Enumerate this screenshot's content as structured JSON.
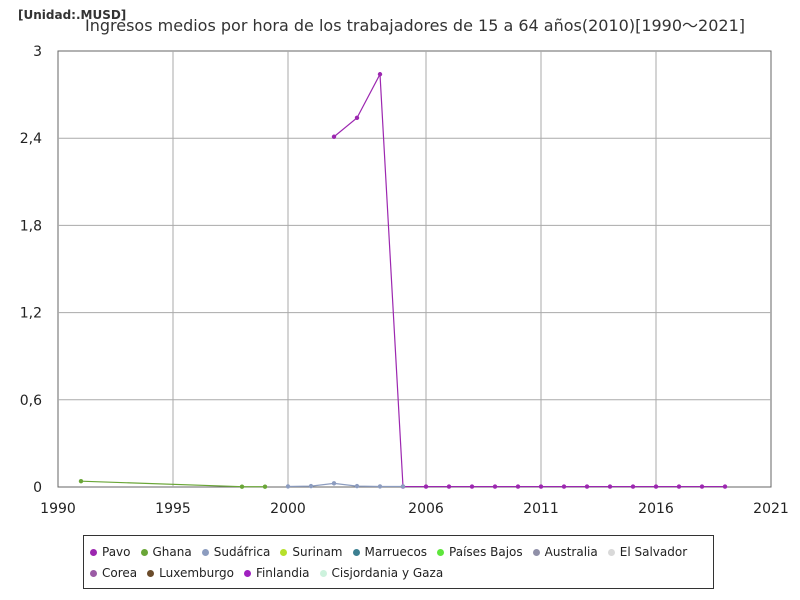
{
  "unit_label": "[Unidad:.MUSD]",
  "chart_data": {
    "type": "line",
    "title": "Ingresos medios por hora de los trabajadores de 15 a 64 años(2010)[1990～2021]",
    "xlabel": "",
    "ylabel": "",
    "xlim": [
      1990,
      2021
    ],
    "ylim": [
      0,
      3
    ],
    "x_ticks": [
      "1990",
      "1995",
      "2000",
      "2006",
      "2011",
      "2016",
      "2021"
    ],
    "y_ticks": [
      "0",
      "0,6",
      "1,2",
      "1,8",
      "2,4",
      "3"
    ],
    "grid": true,
    "legend_position": "bottom",
    "series": [
      {
        "name": "Pavo",
        "color": "#9c27b0",
        "x": [
          2002,
          2003,
          2004,
          2005,
          2006,
          2007,
          2008,
          2009,
          2010,
          2011,
          2012,
          2013,
          2014,
          2015,
          2016,
          2017,
          2018,
          2019
        ],
        "y": [
          2.41,
          2.54,
          2.84,
          0.003,
          0.003,
          0.003,
          0.003,
          0.003,
          0.003,
          0.003,
          0.003,
          0.003,
          0.003,
          0.003,
          0.003,
          0.003,
          0.003,
          0.003
        ]
      },
      {
        "name": "Ghana",
        "color": "#6aa637",
        "x": [
          1991,
          1998,
          1999
        ],
        "y": [
          0.04,
          0.002,
          0.002
        ]
      },
      {
        "name": "Sudáfrica",
        "color": "#8c9cbf",
        "x": [
          2000,
          2001,
          2002,
          2003,
          2004,
          2005
        ],
        "y": [
          0.004,
          0.006,
          0.025,
          0.006,
          0.004,
          0.004
        ]
      },
      {
        "name": "Surinam",
        "color": "#b6e02b",
        "x": [],
        "y": []
      },
      {
        "name": "Marruecos",
        "color": "#3c7f91",
        "x": [],
        "y": []
      },
      {
        "name": "Países Bajos",
        "color": "#5ee63c",
        "x": [],
        "y": []
      },
      {
        "name": "Australia",
        "color": "#9090a8",
        "x": [],
        "y": []
      },
      {
        "name": "El Salvador",
        "color": "#d9d9d9",
        "x": [],
        "y": []
      },
      {
        "name": "Corea",
        "color": "#9b5ba5",
        "x": [],
        "y": []
      },
      {
        "name": "Luxemburgo",
        "color": "#6b4c2b",
        "x": [],
        "y": []
      },
      {
        "name": "Finlandia",
        "color": "#a020c0",
        "x": [],
        "y": []
      },
      {
        "name": "Cisjordania y Gaza",
        "color": "#cdf2dd",
        "x": [],
        "y": []
      }
    ]
  }
}
